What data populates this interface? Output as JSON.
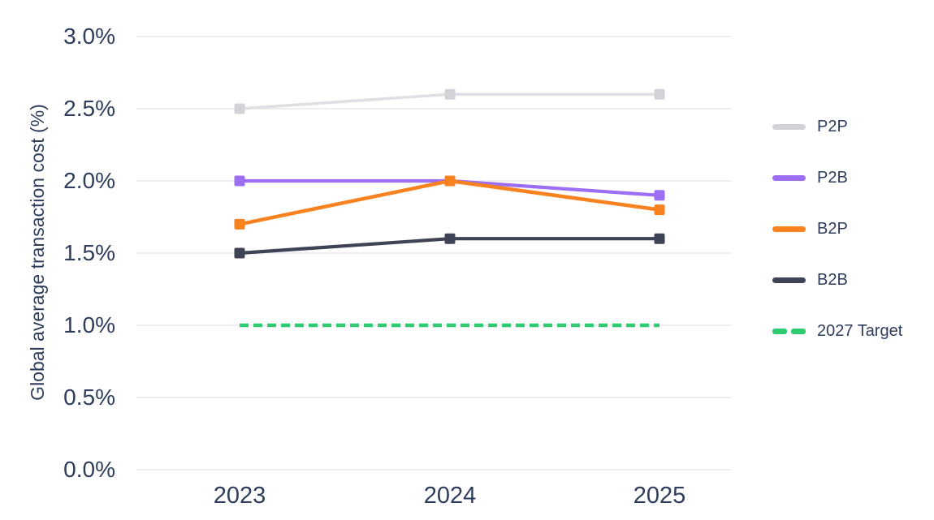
{
  "chart_data": {
    "type": "line",
    "title": "",
    "ylabel": "Global average transaction cost (%)",
    "xlabel": "",
    "x_labels": [
      "2023",
      "2024",
      "2025"
    ],
    "y_ticks": [
      "3.0%",
      "2.5%",
      "2.0%",
      "1.5%",
      "1.0%",
      "0.5%",
      "0.0%"
    ],
    "y_tick_values": [
      3.0,
      2.5,
      2.0,
      1.5,
      1.0,
      0.5,
      0.0
    ],
    "ylim": [
      0.0,
      3.0
    ],
    "grid": true,
    "legend_position": "right",
    "series": [
      {
        "name": "P2P",
        "values": [
          2.5,
          2.6,
          2.6
        ],
        "color": "#dfdfe4",
        "marker_color": "#d2d2d9",
        "style": "solid"
      },
      {
        "name": "P2B",
        "values": [
          2.0,
          2.0,
          1.9
        ],
        "color": "#9c6ef4",
        "marker_color": "#9c6ef4",
        "style": "solid"
      },
      {
        "name": "B2P",
        "values": [
          1.7,
          2.0,
          1.8
        ],
        "color": "#f8821f",
        "marker_color": "#f8821f",
        "style": "solid"
      },
      {
        "name": "B2B",
        "values": [
          1.5,
          1.6,
          1.6
        ],
        "color": "#3e4356",
        "marker_color": "#3e4356",
        "style": "solid"
      }
    ],
    "target_line": {
      "label": "2027 Target",
      "value": 1.0,
      "color": "#2ecc71",
      "style": "dashed"
    },
    "colors": {
      "axis_text": "#2e3d5c",
      "gridline": "#e9e9ed",
      "background": "#ffffff"
    }
  }
}
